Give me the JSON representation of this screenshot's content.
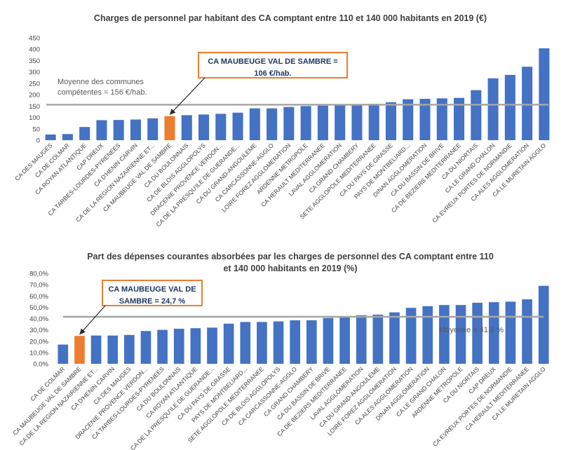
{
  "chart_data": [
    {
      "type": "bar",
      "title": "Charges de personnel par habitant des CA comptant entre 110 et 140 000 habitants en 2019 (€)",
      "ylim": [
        0,
        450
      ],
      "yticks": [
        "0",
        "50",
        "100",
        "150",
        "200",
        "250",
        "300",
        "350",
        "400",
        "450"
      ],
      "grid": false,
      "bar_color": "#4472c4",
      "highlight_color": "#ed7d31",
      "highlight_index": 7,
      "reference_line": {
        "value": 156,
        "color": "#a6a6a6",
        "label_lines": [
          "Moyenne des communes",
          "compétentes = 156 €/hab."
        ]
      },
      "callout": {
        "lines": [
          "CA MAUBEUGE VAL DE SAMBRE =",
          "106 €/hab."
        ],
        "border_color": "#ed7d31"
      },
      "categories": [
        "CA DES MAUGES",
        "CA DE COLMAR",
        "CA ROYAN ATLANTIQUE",
        "CAP DREUX",
        "CA TARBES-LOURDES-PYRENEES",
        "CA D'HENIN CARVIN",
        "CA DE LA REGION NAZAIRIENNE ET...",
        "CA MAUBEUGE VAL DE SAMBRE",
        "CA DU BOULONNAIS",
        "CA DE BLOIS AGGLOPOLYS",
        "DRACENIE PROVENCE VERDON...",
        "CA DE LA PRESQU'ILE DE GUERANDE...",
        "CA DU GRAND-ANGOULEME",
        "CA CARCASSONNE-AGGLO",
        "LOIRE FOREZ AGGLOMERATION",
        "ARDENNE METROPOLE",
        "CA HERAULT MEDITERRANEE",
        "LAVAL AGGLOMERATION",
        "CA GRAND CHAMBERY",
        "SETE AGGLOPOLE MEDITERRANEE",
        "CA DU PAYS DE GRASSE",
        "PAYS DE MONTBELIARD...",
        "DINAN AGGLOMERATION",
        "CA DU BASSIN DE BRIVE",
        "CA DE BEZIERS MEDITERRANEE",
        "CA DU NIORTAIS",
        "CA LE GRAND CHALON",
        "CA EVREUX PORTES DE NORMANDIE",
        "CA ALES AGGLOMERATION",
        "CA LE MURETAIN AGGLO"
      ],
      "values": [
        25,
        27,
        58,
        88,
        89,
        91,
        96,
        106,
        110,
        113,
        116,
        121,
        140,
        140,
        146,
        150,
        152,
        153,
        153,
        160,
        167,
        180,
        182,
        184,
        186,
        220,
        272,
        287,
        323,
        404
      ]
    },
    {
      "type": "bar",
      "title": "Part des dépenses courantes absorbées par les charges de personnel des CA comptant entre 110 et 140 000 habitants en 2019 (%)",
      "title_lines": [
        "Part des dépenses courantes absorbées par les charges de personnel des CA comptant entre 110",
        "et 140 000 habitants en 2019 (%)"
      ],
      "ylim": [
        0,
        80
      ],
      "yticks": [
        "0,0%",
        "10,0%",
        "20,0%",
        "30,0%",
        "40,0%",
        "50,0%",
        "60,0%",
        "70,0%",
        "80,0%"
      ],
      "grid": false,
      "bar_color": "#4472c4",
      "highlight_color": "#ed7d31",
      "highlight_index": 1,
      "reference_line": {
        "value": 41.6,
        "color": "#a6a6a6",
        "label": "Moyenne = 41,6 %"
      },
      "callout": {
        "lines": [
          "CA MAUBEUGE VAL DE",
          "SAMBRE = 24,7 %"
        ],
        "border_color": "#ed7d31"
      },
      "categories": [
        "CA DE COLMAR",
        "CA MAUBEUGE VAL DE SAMBRE",
        "CA DE LA REGION NAZAIRIENNE ET...",
        "CA D'HENIN CARVIN",
        "CA DES MAUGES",
        "DRACENIE PROVENCE VERDON...",
        "CA TARBES-LOURDES-PYRENEES",
        "CA DU BOULONNAIS",
        "CA ROYAN ATLANTIQUE",
        "CA DE LA PRESQU'ILE DE GUERANDE...",
        "CA DU PAYS DE GRASSE",
        "PAYS DE MONTBELIARD...",
        "SETE AGGLOPOLE MEDITERRANEE",
        "CA DE BLOIS AGGLOPOLYS",
        "CA CARCASSONNE-AGGLO",
        "CA GRAND CHAMBERY",
        "CA DU BASSIN DE BRIVE",
        "CA DE BEZIERS MEDITERRANEE",
        "LAVAL AGGLOMERATION",
        "CA DU GRAND-ANGOULEME",
        "LOIRE FOREZ AGGLOMERATION",
        "CA ALES AGGLOMERATION",
        "DINAN AGGLOMERATION",
        "CA LE GRAND CHALON",
        "ARDENNE METROPOLE",
        "CA DU NIORTAIS",
        "CAP DREUX",
        "CA EVREUX PORTES DE NORMANDIE",
        "CA HERAULT MEDITERRANEE",
        "CA LE MURETAIN AGGLO"
      ],
      "values": [
        17,
        24.7,
        25,
        25,
        25.5,
        29,
        30,
        31,
        31.5,
        32,
        35.5,
        37,
        37,
        37.5,
        38.5,
        38.5,
        40.5,
        41,
        43,
        43.5,
        45.5,
        49.5,
        51,
        52,
        52,
        54,
        54.5,
        55,
        57,
        69
      ]
    }
  ]
}
